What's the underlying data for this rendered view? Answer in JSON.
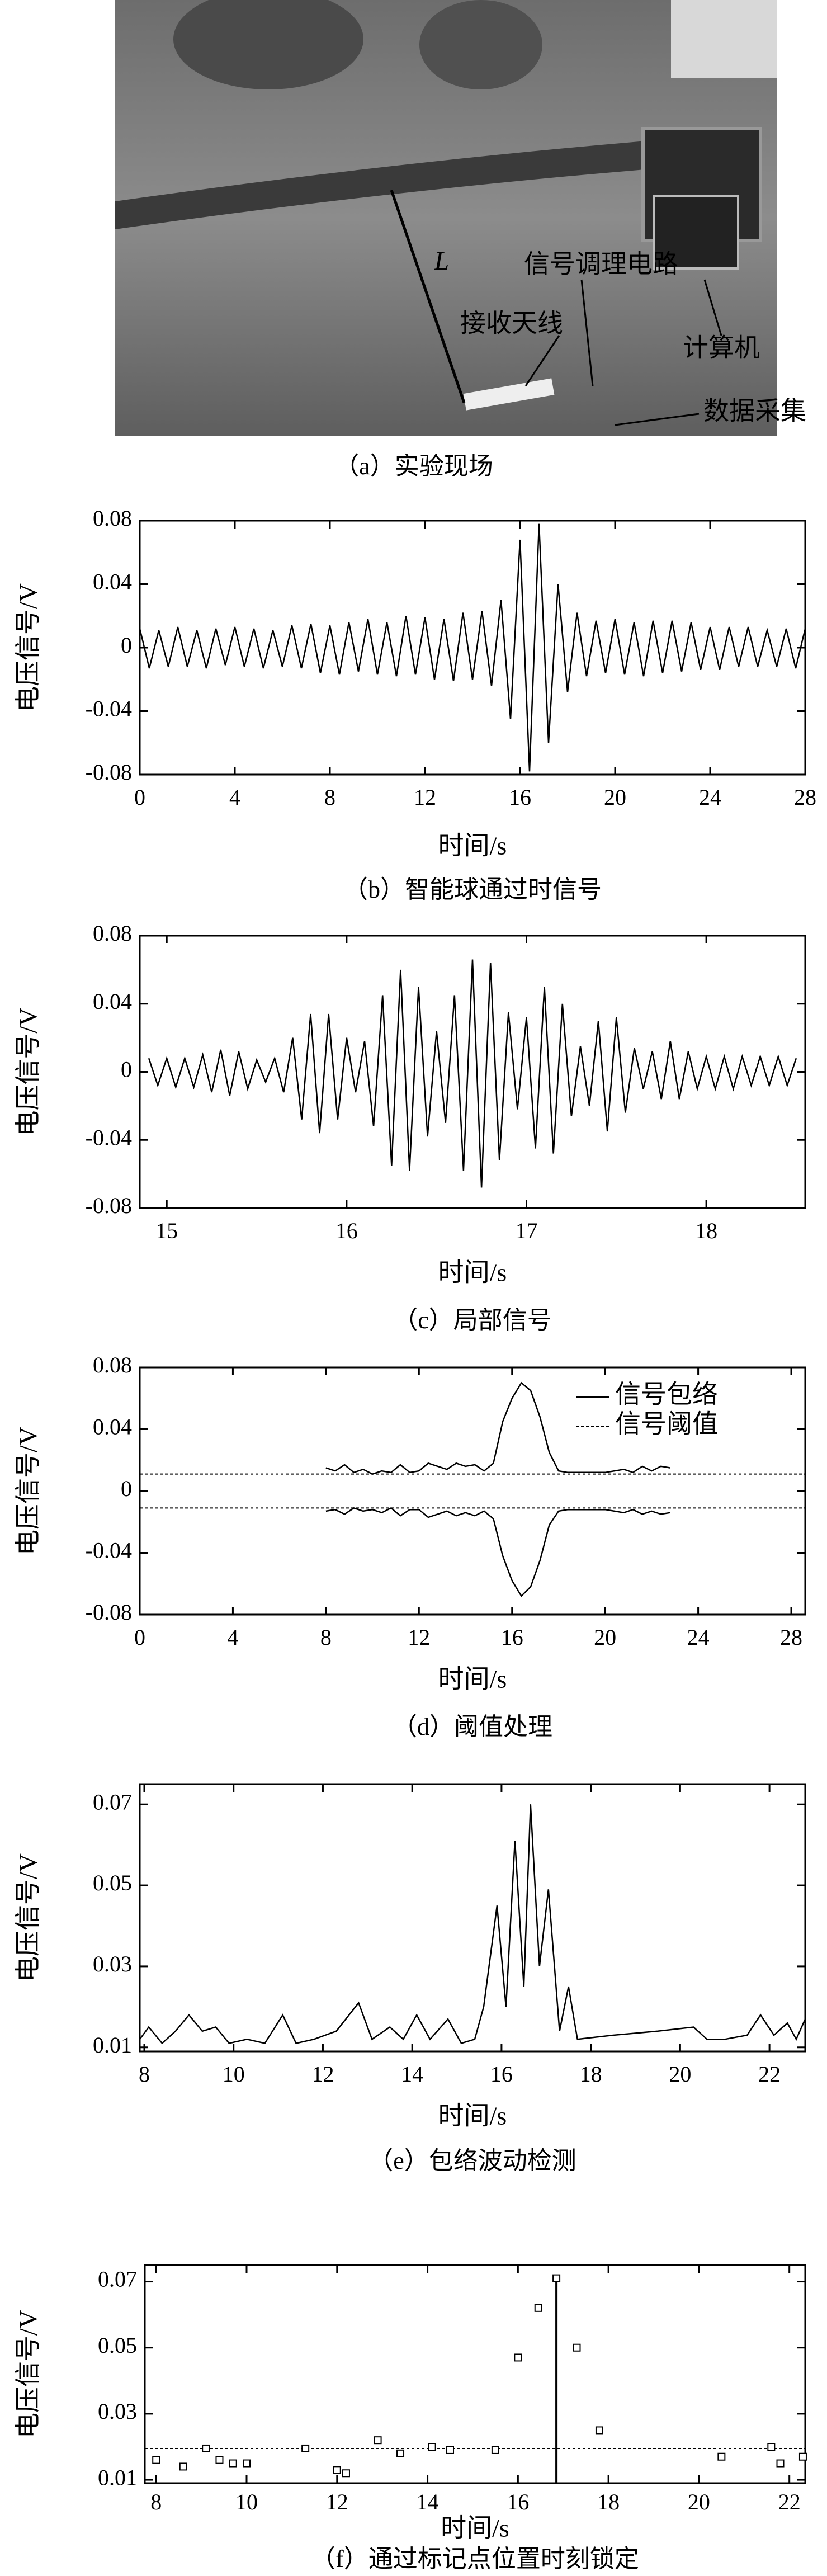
{
  "photo": {
    "labels": [
      "L",
      "信号调理电路",
      "接收天线",
      "计算机",
      "数据采集"
    ],
    "caption": "（a）实验现场"
  },
  "chart_data": [
    {
      "type": "line",
      "caption": "（b）智能球通过时信号",
      "xlabel": "时间/s",
      "ylabel": "电压信号/V",
      "color": "#000000",
      "xlim": [
        0,
        28
      ],
      "xticks": [
        0,
        4,
        8,
        12,
        16,
        20,
        24,
        28
      ],
      "ylim": [
        -0.08,
        0.08
      ],
      "yticks": [
        -0.08,
        -0.04,
        0,
        0.04,
        0.08
      ],
      "x": [
        0,
        0.4,
        0.8,
        1.2,
        1.6,
        2.0,
        2.4,
        2.8,
        3.2,
        3.6,
        4.0,
        4.4,
        4.8,
        5.2,
        5.6,
        6.0,
        6.4,
        6.8,
        7.2,
        7.6,
        8.0,
        8.4,
        8.8,
        9.2,
        9.6,
        10.0,
        10.4,
        10.8,
        11.2,
        11.6,
        12.0,
        12.4,
        12.8,
        13.2,
        13.6,
        14.0,
        14.4,
        14.8,
        15.2,
        15.6,
        16.0,
        16.4,
        16.8,
        17.2,
        17.6,
        18.0,
        18.4,
        18.8,
        19.2,
        19.6,
        20.0,
        20.4,
        20.8,
        21.2,
        21.6,
        22.0,
        22.4,
        22.8,
        23.2,
        23.6,
        24.0,
        24.4,
        24.8,
        25.2,
        25.6,
        26.0,
        26.4,
        26.8,
        27.2,
        27.6,
        28.0
      ],
      "values": [
        0.012,
        -0.013,
        0.011,
        -0.012,
        0.013,
        -0.012,
        0.011,
        -0.013,
        0.012,
        -0.011,
        0.013,
        -0.012,
        0.012,
        -0.013,
        0.011,
        -0.012,
        0.014,
        -0.013,
        0.015,
        -0.016,
        0.014,
        -0.017,
        0.016,
        -0.015,
        0.018,
        -0.017,
        0.016,
        -0.018,
        0.02,
        -0.017,
        0.019,
        -0.02,
        0.018,
        -0.021,
        0.022,
        -0.02,
        0.023,
        -0.024,
        0.03,
        -0.045,
        0.068,
        -0.078,
        0.078,
        -0.06,
        0.04,
        -0.028,
        0.022,
        -0.018,
        0.017,
        -0.016,
        0.018,
        -0.017,
        0.016,
        -0.018,
        0.017,
        -0.016,
        0.017,
        -0.015,
        0.016,
        -0.014,
        0.013,
        -0.014,
        0.013,
        -0.012,
        0.013,
        -0.012,
        0.011,
        -0.012,
        0.012,
        -0.013,
        0.012
      ]
    },
    {
      "type": "line",
      "caption": "（c）局部信号",
      "xlabel": "时间/s",
      "ylabel": "电压信号/V",
      "color": "#000000",
      "xlim": [
        14.85,
        18.55
      ],
      "xticks": [
        15,
        16,
        17,
        18
      ],
      "ylim": [
        -0.08,
        0.08
      ],
      "yticks": [
        -0.08,
        -0.04,
        0,
        0.04,
        0.08
      ],
      "x": [
        14.9,
        14.95,
        15.0,
        15.05,
        15.1,
        15.15,
        15.2,
        15.25,
        15.3,
        15.35,
        15.4,
        15.45,
        15.5,
        15.55,
        15.6,
        15.65,
        15.7,
        15.75,
        15.8,
        15.85,
        15.9,
        15.95,
        16.0,
        16.05,
        16.1,
        16.15,
        16.2,
        16.25,
        16.3,
        16.35,
        16.4,
        16.45,
        16.5,
        16.55,
        16.6,
        16.65,
        16.7,
        16.75,
        16.8,
        16.85,
        16.9,
        16.95,
        17.0,
        17.05,
        17.1,
        17.15,
        17.2,
        17.25,
        17.3,
        17.35,
        17.4,
        17.45,
        17.5,
        17.55,
        17.6,
        17.65,
        17.7,
        17.75,
        17.8,
        17.85,
        17.9,
        17.95,
        18.0,
        18.05,
        18.1,
        18.15,
        18.2,
        18.25,
        18.3,
        18.35,
        18.4,
        18.45,
        18.5
      ],
      "values": [
        0.008,
        -0.008,
        0.008,
        -0.009,
        0.008,
        -0.009,
        0.01,
        -0.012,
        0.013,
        -0.014,
        0.012,
        -0.01,
        0.007,
        -0.006,
        0.008,
        -0.012,
        0.02,
        -0.028,
        0.034,
        -0.036,
        0.034,
        -0.028,
        0.02,
        -0.012,
        0.018,
        -0.032,
        0.045,
        -0.055,
        0.06,
        -0.058,
        0.05,
        -0.038,
        0.024,
        -0.03,
        0.045,
        -0.058,
        0.066,
        -0.068,
        0.064,
        -0.052,
        0.035,
        -0.022,
        0.032,
        -0.045,
        0.05,
        -0.048,
        0.04,
        -0.026,
        0.015,
        -0.02,
        0.03,
        -0.035,
        0.032,
        -0.024,
        0.014,
        -0.01,
        0.012,
        -0.016,
        0.018,
        -0.016,
        0.012,
        -0.01,
        0.009,
        -0.01,
        0.009,
        -0.01,
        0.009,
        -0.008,
        0.009,
        -0.008,
        0.009,
        -0.008,
        0.008
      ]
    },
    {
      "type": "envelope",
      "caption": "（d）阈值处理",
      "xlabel": "时间/s",
      "ylabel": "电压信号/V",
      "color": "#000000",
      "legend": "upper right",
      "xlim": [
        0,
        28.6
      ],
      "xticks": [
        0,
        4,
        8,
        12,
        16,
        20,
        24,
        28
      ],
      "ylim": [
        -0.08,
        0.08
      ],
      "yticks": [
        -0.08,
        -0.04,
        0,
        0.04,
        0.08
      ],
      "x": [
        8.0,
        8.4,
        8.8,
        9.2,
        9.6,
        10.0,
        10.4,
        10.8,
        11.2,
        11.6,
        12.0,
        12.4,
        12.8,
        13.2,
        13.6,
        14.0,
        14.4,
        14.8,
        15.2,
        15.6,
        16.0,
        16.4,
        16.8,
        17.2,
        17.6,
        18.0,
        18.4,
        18.8,
        19.2,
        19.6,
        20.0,
        20.4,
        20.8,
        21.2,
        21.6,
        22.0,
        22.4,
        22.8
      ],
      "series": [
        {
          "name": "信号包络",
          "upper": [
            0.015,
            0.013,
            0.017,
            0.012,
            0.014,
            0.011,
            0.013,
            0.012,
            0.017,
            0.012,
            0.013,
            0.018,
            0.016,
            0.014,
            0.018,
            0.016,
            0.017,
            0.013,
            0.018,
            0.045,
            0.06,
            0.07,
            0.065,
            0.048,
            0.025,
            0.013,
            0.012,
            0.012,
            0.012,
            0.012,
            0.012,
            0.013,
            0.014,
            0.012,
            0.016,
            0.013,
            0.016,
            0.015
          ],
          "lower": [
            -0.013,
            -0.012,
            -0.015,
            -0.011,
            -0.013,
            -0.012,
            -0.014,
            -0.011,
            -0.016,
            -0.012,
            -0.012,
            -0.017,
            -0.015,
            -0.013,
            -0.016,
            -0.014,
            -0.016,
            -0.013,
            -0.018,
            -0.042,
            -0.058,
            -0.068,
            -0.062,
            -0.045,
            -0.022,
            -0.013,
            -0.012,
            -0.012,
            -0.012,
            -0.012,
            -0.012,
            -0.013,
            -0.014,
            -0.012,
            -0.015,
            -0.013,
            -0.015,
            -0.014
          ]
        }
      ],
      "threshold": {
        "name": "信号阈值",
        "values": [
          0.011,
          -0.011
        ]
      }
    },
    {
      "type": "line",
      "caption": "（e）包络波动检测",
      "xlabel": "时间/s",
      "ylabel": "电压信号/V",
      "color": "#000000",
      "xlim": [
        7.9,
        22.8
      ],
      "xticks": [
        8,
        10,
        12,
        14,
        16,
        18,
        20,
        22
      ],
      "ylim": [
        0.009,
        0.075
      ],
      "yticks": [
        0.01,
        0.03,
        0.05,
        0.07
      ],
      "x": [
        7.9,
        8.1,
        8.4,
        8.7,
        9.0,
        9.3,
        9.6,
        9.9,
        10.3,
        10.7,
        11.1,
        11.4,
        11.8,
        12.3,
        12.8,
        13.1,
        13.5,
        13.8,
        14.1,
        14.4,
        14.8,
        15.1,
        15.4,
        15.6,
        15.9,
        16.1,
        16.3,
        16.5,
        16.65,
        16.85,
        17.05,
        17.3,
        17.5,
        17.7,
        18.5,
        19.5,
        20.3,
        20.6,
        21.0,
        21.5,
        21.8,
        22.1,
        22.4,
        22.6,
        22.8
      ],
      "values": [
        0.012,
        0.015,
        0.011,
        0.014,
        0.018,
        0.014,
        0.015,
        0.011,
        0.012,
        0.011,
        0.018,
        0.011,
        0.012,
        0.014,
        0.021,
        0.012,
        0.015,
        0.012,
        0.018,
        0.012,
        0.017,
        0.011,
        0.012,
        0.02,
        0.045,
        0.02,
        0.061,
        0.025,
        0.07,
        0.03,
        0.049,
        0.014,
        0.025,
        0.012,
        0.013,
        0.014,
        0.015,
        0.012,
        0.012,
        0.013,
        0.018,
        0.013,
        0.016,
        0.012,
        0.017
      ]
    },
    {
      "type": "scatter",
      "caption": "（f）通过标记点位置时刻锁定",
      "xlabel": "时间/s",
      "ylabel": "电压信号/V",
      "color": "#000000",
      "xlim": [
        7.75,
        22.35
      ],
      "xticks": [
        8,
        10,
        12,
        14,
        16,
        18,
        20,
        22
      ],
      "ylim": [
        0.009,
        0.075
      ],
      "yticks": [
        0.01,
        0.03,
        0.05,
        0.07
      ],
      "x": [
        8.0,
        8.6,
        9.1,
        9.4,
        9.7,
        10.0,
        11.3,
        12.0,
        12.2,
        12.9,
        13.4,
        14.1,
        14.5,
        15.5,
        16.0,
        16.45,
        16.85,
        17.3,
        17.8,
        20.5,
        21.6,
        21.8,
        22.3
      ],
      "values": [
        0.016,
        0.014,
        0.0195,
        0.016,
        0.015,
        0.015,
        0.0195,
        0.013,
        0.012,
        0.022,
        0.018,
        0.02,
        0.019,
        0.019,
        0.047,
        0.062,
        0.071,
        0.05,
        0.025,
        0.017,
        0.02,
        0.015,
        0.017
      ],
      "threshold": 0.0195
    }
  ]
}
